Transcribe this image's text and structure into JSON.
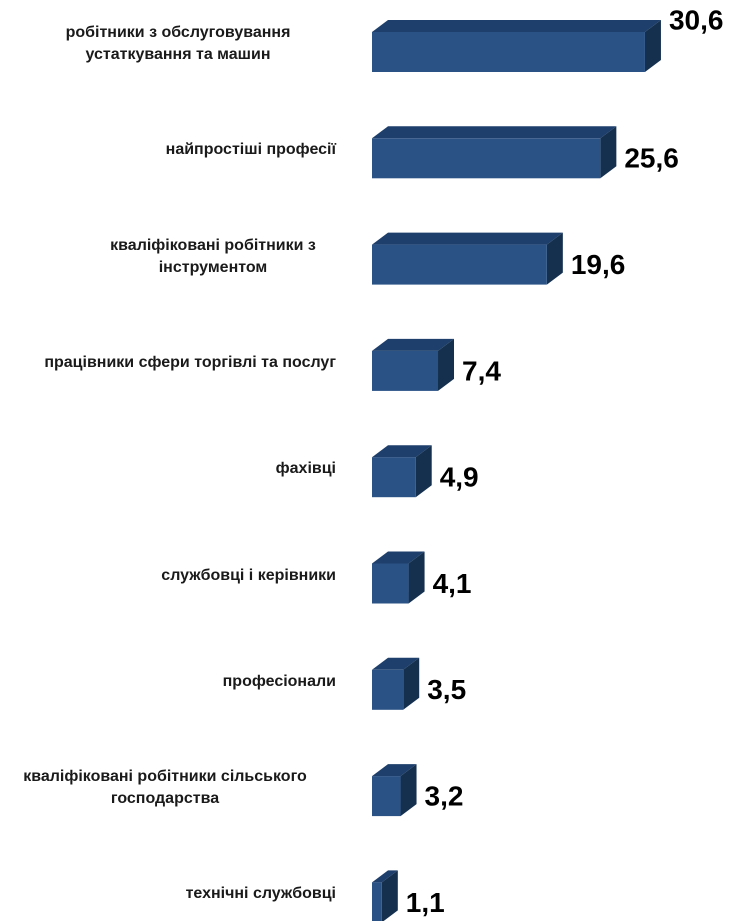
{
  "chart_data": {
    "type": "bar",
    "orientation": "horizontal",
    "categories": [
      "робітники з обслуговування устаткування та машин",
      "найпростіші професії",
      "кваліфіковані робітники з інструментом",
      "працівники сфери торгівлі та послуг",
      "фахівці",
      "службовці і керівники",
      "професіонали",
      "кваліфіковані робітники сільського господарства",
      "технічні службовці"
    ],
    "values": [
      30.6,
      25.6,
      19.6,
      7.4,
      4.9,
      4.1,
      3.5,
      3.2,
      1.1
    ],
    "value_labels": [
      "30,6",
      "25,6",
      "19,6",
      "7,4",
      "4,9",
      "4,1",
      "3,5",
      "3,2",
      "1,1"
    ],
    "color": "#2a5285"
  }
}
